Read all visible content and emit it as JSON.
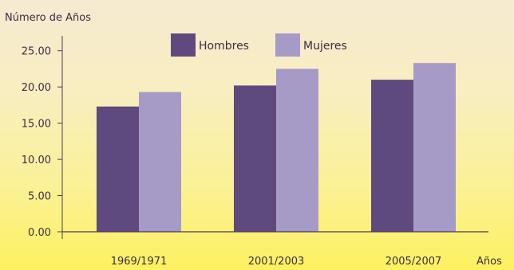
{
  "chart_data": {
    "type": "bar",
    "title": "",
    "ylabel": "Número de Años",
    "xlabel": "Años",
    "categories": [
      "1969/1971",
      "2001/2003",
      "2005/2007"
    ],
    "yticks": [
      "0.00",
      "5.00",
      "10.00",
      "15.00",
      "20.00",
      "25.00"
    ],
    "ylim": [
      0,
      27.5
    ],
    "grid": false,
    "legend_position": "top",
    "series": [
      {
        "name": "Hombres",
        "values": [
          17.3,
          20.2,
          21.0
        ],
        "color": "#5e4a7e"
      },
      {
        "name": "Mujeres",
        "values": [
          19.3,
          22.5,
          23.3
        ],
        "color": "#a69bc6"
      }
    ]
  }
}
